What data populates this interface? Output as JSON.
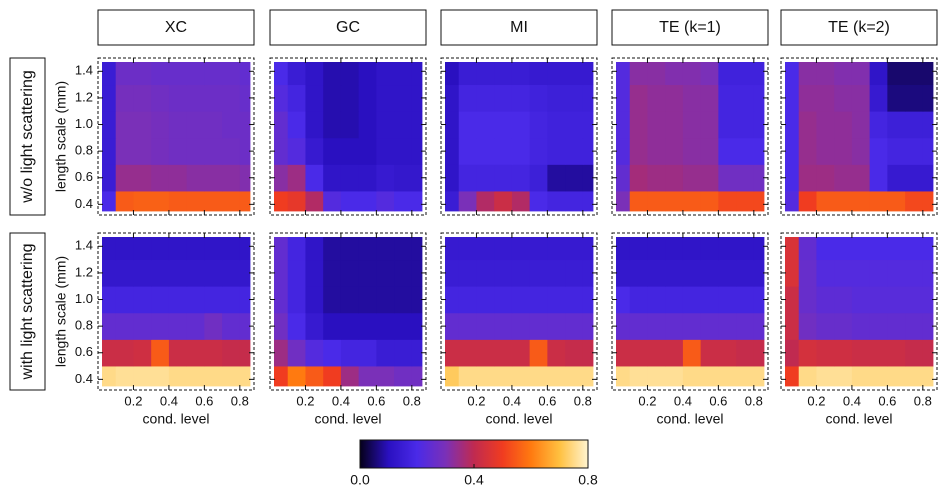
{
  "column_titles": [
    "XC",
    "GC",
    "MI",
    "TE (k=1)",
    "TE (k=2)"
  ],
  "row_titles": [
    "w/o light scattering",
    "with light scattering"
  ],
  "colorscale": [
    "#05001a",
    "#2a10c0",
    "#4a2ae8",
    "#7a30b8",
    "#c02a50",
    "#f03c20",
    "#ff7a10",
    "#ffc040",
    "#fff4d0"
  ],
  "colorbar": {
    "zlim": [
      0,
      0.8
    ],
    "ticks": [
      {
        "value": 0,
        "label": "0.0"
      },
      0.4,
      0.8
    ]
  },
  "chart_data": [
    {
      "type": "heatmap",
      "ylabel": "length scale (mm)",
      "x": [
        0.05,
        0.15,
        0.25,
        0.35,
        0.45,
        0.55,
        0.65,
        0.75,
        0.85
      ],
      "y": [
        0.4,
        0.6,
        0.8,
        1,
        1.2,
        1.4
      ],
      "xlim": [
        0,
        0.88
      ],
      "ylim": [
        0.32,
        1.5
      ],
      "xticks": [
        0.2,
        0.4,
        0.6,
        0.8
      ],
      "yticks": [
        0.4,
        0.6,
        0.8,
        {
          "value": 1,
          "label": "1.0"
        },
        1.2,
        1.4
      ],
      "values": [
        [
          0.2,
          0.55,
          0.56,
          0.56,
          0.55,
          0.55,
          0.55,
          0.55,
          0.55
        ],
        [
          0.15,
          0.34,
          0.34,
          0.33,
          0.33,
          0.32,
          0.32,
          0.32,
          0.31
        ],
        [
          0.15,
          0.3,
          0.3,
          0.29,
          0.28,
          0.28,
          0.28,
          0.28,
          0.27
        ],
        [
          0.15,
          0.3,
          0.3,
          0.29,
          0.28,
          0.28,
          0.28,
          0.27,
          0.27
        ],
        [
          0.15,
          0.29,
          0.29,
          0.28,
          0.27,
          0.27,
          0.27,
          0.27,
          0.26
        ],
        [
          0.15,
          0.27,
          0.27,
          0.26,
          0.26,
          0.26,
          0.26,
          0.26,
          0.25
        ]
      ]
    },
    {
      "type": "heatmap",
      "x": [
        0.05,
        0.15,
        0.25,
        0.35,
        0.45,
        0.55,
        0.65,
        0.75,
        0.85
      ],
      "y": [
        0.4,
        0.6,
        0.8,
        1,
        1.2,
        1.4
      ],
      "xlim": [
        0,
        0.88
      ],
      "ylim": [
        0.32,
        1.5
      ],
      "xticks": [
        0.2,
        0.4,
        0.6,
        0.8
      ],
      "yticks": [
        0.4,
        0.6,
        0.8,
        1,
        1.2,
        1.4
      ],
      "values": [
        [
          0.5,
          0.48,
          0.38,
          0.22,
          0.2,
          0.2,
          0.22,
          0.2,
          0.2
        ],
        [
          0.32,
          0.35,
          0.2,
          0.12,
          0.12,
          0.12,
          0.14,
          0.13,
          0.13
        ],
        [
          0.25,
          0.22,
          0.14,
          0.1,
          0.1,
          0.1,
          0.12,
          0.12,
          0.12
        ],
        [
          0.25,
          0.2,
          0.12,
          0.09,
          0.09,
          0.1,
          0.12,
          0.12,
          0.12
        ],
        [
          0.22,
          0.18,
          0.12,
          0.09,
          0.09,
          0.1,
          0.12,
          0.12,
          0.12
        ],
        [
          0.2,
          0.15,
          0.12,
          0.09,
          0.09,
          0.1,
          0.12,
          0.12,
          0.12
        ]
      ]
    },
    {
      "type": "heatmap",
      "x": [
        0.05,
        0.15,
        0.25,
        0.35,
        0.45,
        0.55,
        0.65,
        0.75,
        0.85
      ],
      "y": [
        0.4,
        0.6,
        0.8,
        1,
        1.2,
        1.4
      ],
      "xlim": [
        0,
        0.88
      ],
      "ylim": [
        0.32,
        1.5
      ],
      "xticks": [
        0.2,
        0.4,
        0.6,
        0.8
      ],
      "yticks": [
        0.4,
        0.6,
        0.8,
        1,
        1.2,
        1.4
      ],
      "values": [
        [
          0.15,
          0.3,
          0.38,
          0.42,
          0.38,
          0.2,
          0.18,
          0.18,
          0.18
        ],
        [
          0.12,
          0.18,
          0.18,
          0.18,
          0.18,
          0.16,
          0.08,
          0.08,
          0.08
        ],
        [
          0.12,
          0.2,
          0.2,
          0.2,
          0.2,
          0.18,
          0.17,
          0.17,
          0.17
        ],
        [
          0.12,
          0.2,
          0.2,
          0.2,
          0.2,
          0.18,
          0.17,
          0.17,
          0.17
        ],
        [
          0.12,
          0.18,
          0.18,
          0.18,
          0.18,
          0.17,
          0.16,
          0.16,
          0.16
        ],
        [
          0.1,
          0.15,
          0.15,
          0.15,
          0.15,
          0.14,
          0.14,
          0.14,
          0.14
        ]
      ]
    },
    {
      "type": "heatmap",
      "x": [
        0.05,
        0.15,
        0.25,
        0.35,
        0.45,
        0.55,
        0.65,
        0.75,
        0.85
      ],
      "y": [
        0.4,
        0.6,
        0.8,
        1,
        1.2,
        1.4
      ],
      "xlim": [
        0,
        0.88
      ],
      "ylim": [
        0.32,
        1.5
      ],
      "xticks": [
        0.2,
        0.4,
        0.6,
        0.8
      ],
      "yticks": [
        0.4,
        0.6,
        0.8,
        1,
        1.2,
        1.4
      ],
      "values": [
        [
          0.3,
          0.55,
          0.55,
          0.55,
          0.55,
          0.55,
          0.52,
          0.52,
          0.52
        ],
        [
          0.25,
          0.36,
          0.35,
          0.35,
          0.34,
          0.34,
          0.28,
          0.28,
          0.28
        ],
        [
          0.22,
          0.34,
          0.33,
          0.33,
          0.32,
          0.32,
          0.2,
          0.2,
          0.2
        ],
        [
          0.22,
          0.34,
          0.33,
          0.33,
          0.32,
          0.32,
          0.18,
          0.18,
          0.18
        ],
        [
          0.22,
          0.34,
          0.33,
          0.33,
          0.32,
          0.32,
          0.18,
          0.18,
          0.18
        ],
        [
          0.22,
          0.32,
          0.32,
          0.31,
          0.31,
          0.3,
          0.17,
          0.17,
          0.17
        ]
      ]
    },
    {
      "type": "heatmap",
      "x": [
        0.05,
        0.15,
        0.25,
        0.35,
        0.45,
        0.55,
        0.65,
        0.75,
        0.85
      ],
      "y": [
        0.4,
        0.6,
        0.8,
        1,
        1.2,
        1.4
      ],
      "xlim": [
        0,
        0.88
      ],
      "ylim": [
        0.32,
        1.5
      ],
      "xticks": [
        0.2,
        0.4,
        0.6,
        0.8
      ],
      "yticks": [
        0.4,
        0.6,
        0.8,
        1,
        1.2,
        1.4
      ],
      "values": [
        [
          0.22,
          0.5,
          0.55,
          0.55,
          0.55,
          0.55,
          0.55,
          0.52,
          0.52
        ],
        [
          0.2,
          0.35,
          0.35,
          0.34,
          0.34,
          0.2,
          0.14,
          0.14,
          0.14
        ],
        [
          0.2,
          0.34,
          0.33,
          0.33,
          0.32,
          0.2,
          0.18,
          0.18,
          0.18
        ],
        [
          0.2,
          0.34,
          0.33,
          0.33,
          0.32,
          0.18,
          0.16,
          0.16,
          0.16
        ],
        [
          0.2,
          0.33,
          0.33,
          0.32,
          0.32,
          0.14,
          0.06,
          0.06,
          0.06
        ],
        [
          0.2,
          0.32,
          0.32,
          0.31,
          0.31,
          0.12,
          0.05,
          0.05,
          0.05
        ]
      ]
    },
    {
      "type": "heatmap",
      "ylabel": "length scale (mm)",
      "xlabel": "cond. level",
      "x": [
        0.05,
        0.15,
        0.25,
        0.35,
        0.45,
        0.55,
        0.65,
        0.75,
        0.85
      ],
      "y": [
        0.4,
        0.6,
        0.8,
        1,
        1.2,
        1.4
      ],
      "xlim": [
        0,
        0.88
      ],
      "ylim": [
        0.32,
        1.5
      ],
      "xticks": [
        0.2,
        0.4,
        0.6,
        0.8
      ],
      "yticks": [
        0.4,
        0.6,
        0.8,
        {
          "value": 1,
          "label": "1.0"
        },
        1.2,
        1.4
      ],
      "values": [
        [
          0.75,
          0.76,
          0.76,
          0.76,
          0.75,
          0.75,
          0.75,
          0.75,
          0.75
        ],
        [
          0.42,
          0.42,
          0.43,
          0.55,
          0.42,
          0.42,
          0.42,
          0.41,
          0.41
        ],
        [
          0.25,
          0.25,
          0.25,
          0.25,
          0.25,
          0.25,
          0.28,
          0.25,
          0.25
        ],
        [
          0.18,
          0.18,
          0.18,
          0.18,
          0.18,
          0.18,
          0.18,
          0.18,
          0.18
        ],
        [
          0.13,
          0.13,
          0.13,
          0.13,
          0.13,
          0.13,
          0.13,
          0.13,
          0.13
        ],
        [
          0.12,
          0.12,
          0.12,
          0.12,
          0.12,
          0.12,
          0.12,
          0.12,
          0.12
        ]
      ]
    },
    {
      "type": "heatmap",
      "xlabel": "cond. level",
      "x": [
        0.05,
        0.15,
        0.25,
        0.35,
        0.45,
        0.55,
        0.65,
        0.75,
        0.85
      ],
      "y": [
        0.4,
        0.6,
        0.8,
        1,
        1.2,
        1.4
      ],
      "xlim": [
        0,
        0.88
      ],
      "ylim": [
        0.32,
        1.5
      ],
      "xticks": [
        0.2,
        0.4,
        0.6,
        0.8
      ],
      "yticks": [
        0.4,
        0.6,
        0.8,
        1,
        1.2,
        1.4
      ],
      "values": [
        [
          0.5,
          0.6,
          0.55,
          0.5,
          0.35,
          0.3,
          0.3,
          0.28,
          0.28
        ],
        [
          0.35,
          0.28,
          0.22,
          0.2,
          0.18,
          0.18,
          0.15,
          0.15,
          0.15
        ],
        [
          0.28,
          0.2,
          0.14,
          0.1,
          0.1,
          0.1,
          0.1,
          0.1,
          0.1
        ],
        [
          0.25,
          0.18,
          0.12,
          0.08,
          0.08,
          0.08,
          0.08,
          0.08,
          0.08
        ],
        [
          0.25,
          0.18,
          0.12,
          0.08,
          0.08,
          0.08,
          0.08,
          0.08,
          0.08
        ],
        [
          0.25,
          0.18,
          0.12,
          0.08,
          0.08,
          0.08,
          0.08,
          0.08,
          0.08
        ]
      ]
    },
    {
      "type": "heatmap",
      "xlabel": "cond. level",
      "x": [
        0.05,
        0.15,
        0.25,
        0.35,
        0.45,
        0.55,
        0.65,
        0.75,
        0.85
      ],
      "y": [
        0.4,
        0.6,
        0.8,
        1,
        1.2,
        1.4
      ],
      "xlim": [
        0,
        0.88
      ],
      "ylim": [
        0.32,
        1.5
      ],
      "xticks": [
        0.2,
        0.4,
        0.6,
        0.8
      ],
      "yticks": [
        0.4,
        0.6,
        0.8,
        1,
        1.2,
        1.4
      ],
      "values": [
        [
          0.72,
          0.75,
          0.75,
          0.75,
          0.75,
          0.75,
          0.75,
          0.75,
          0.75
        ],
        [
          0.42,
          0.42,
          0.42,
          0.42,
          0.42,
          0.55,
          0.42,
          0.41,
          0.41
        ],
        [
          0.25,
          0.25,
          0.25,
          0.25,
          0.25,
          0.25,
          0.25,
          0.25,
          0.25
        ],
        [
          0.18,
          0.18,
          0.18,
          0.18,
          0.18,
          0.18,
          0.18,
          0.18,
          0.18
        ],
        [
          0.15,
          0.15,
          0.15,
          0.15,
          0.15,
          0.15,
          0.15,
          0.15,
          0.15
        ],
        [
          0.14,
          0.14,
          0.14,
          0.14,
          0.14,
          0.14,
          0.14,
          0.14,
          0.14
        ]
      ]
    },
    {
      "type": "heatmap",
      "xlabel": "cond. level",
      "x": [
        0.05,
        0.15,
        0.25,
        0.35,
        0.45,
        0.55,
        0.65,
        0.75,
        0.85
      ],
      "y": [
        0.4,
        0.6,
        0.8,
        1,
        1.2,
        1.4
      ],
      "xlim": [
        0,
        0.88
      ],
      "ylim": [
        0.32,
        1.5
      ],
      "xticks": [
        0.2,
        0.4,
        0.6,
        0.8
      ],
      "yticks": [
        0.4,
        0.6,
        0.8,
        1,
        1.2,
        1.4
      ],
      "values": [
        [
          0.75,
          0.76,
          0.76,
          0.76,
          0.75,
          0.75,
          0.75,
          0.75,
          0.75
        ],
        [
          0.42,
          0.42,
          0.42,
          0.42,
          0.55,
          0.42,
          0.42,
          0.41,
          0.41
        ],
        [
          0.25,
          0.25,
          0.25,
          0.25,
          0.25,
          0.25,
          0.25,
          0.25,
          0.25
        ],
        [
          0.2,
          0.18,
          0.18,
          0.18,
          0.18,
          0.18,
          0.18,
          0.18,
          0.18
        ],
        [
          0.13,
          0.13,
          0.13,
          0.13,
          0.13,
          0.13,
          0.13,
          0.13,
          0.13
        ],
        [
          0.12,
          0.12,
          0.12,
          0.12,
          0.12,
          0.12,
          0.12,
          0.12,
          0.12
        ]
      ]
    },
    {
      "type": "heatmap",
      "xlabel": "cond. level",
      "x": [
        0.05,
        0.15,
        0.25,
        0.35,
        0.45,
        0.55,
        0.65,
        0.75,
        0.85
      ],
      "y": [
        0.4,
        0.6,
        0.8,
        1,
        1.2,
        1.4
      ],
      "xlim": [
        0,
        0.88
      ],
      "ylim": [
        0.32,
        1.5
      ],
      "xticks": [
        0.2,
        0.4,
        0.6,
        0.8
      ],
      "yticks": [
        0.4,
        0.6,
        0.8,
        1,
        1.2,
        1.4
      ],
      "values": [
        [
          0.5,
          0.75,
          0.76,
          0.76,
          0.75,
          0.75,
          0.75,
          0.75,
          0.75
        ],
        [
          0.4,
          0.44,
          0.43,
          0.43,
          0.42,
          0.42,
          0.42,
          0.41,
          0.41
        ],
        [
          0.42,
          0.28,
          0.26,
          0.26,
          0.25,
          0.25,
          0.25,
          0.25,
          0.25
        ],
        [
          0.42,
          0.26,
          0.24,
          0.24,
          0.23,
          0.23,
          0.23,
          0.23,
          0.23
        ],
        [
          0.45,
          0.26,
          0.22,
          0.22,
          0.22,
          0.22,
          0.22,
          0.22,
          0.22
        ],
        [
          0.45,
          0.25,
          0.2,
          0.2,
          0.2,
          0.2,
          0.2,
          0.2,
          0.2
        ]
      ]
    }
  ]
}
